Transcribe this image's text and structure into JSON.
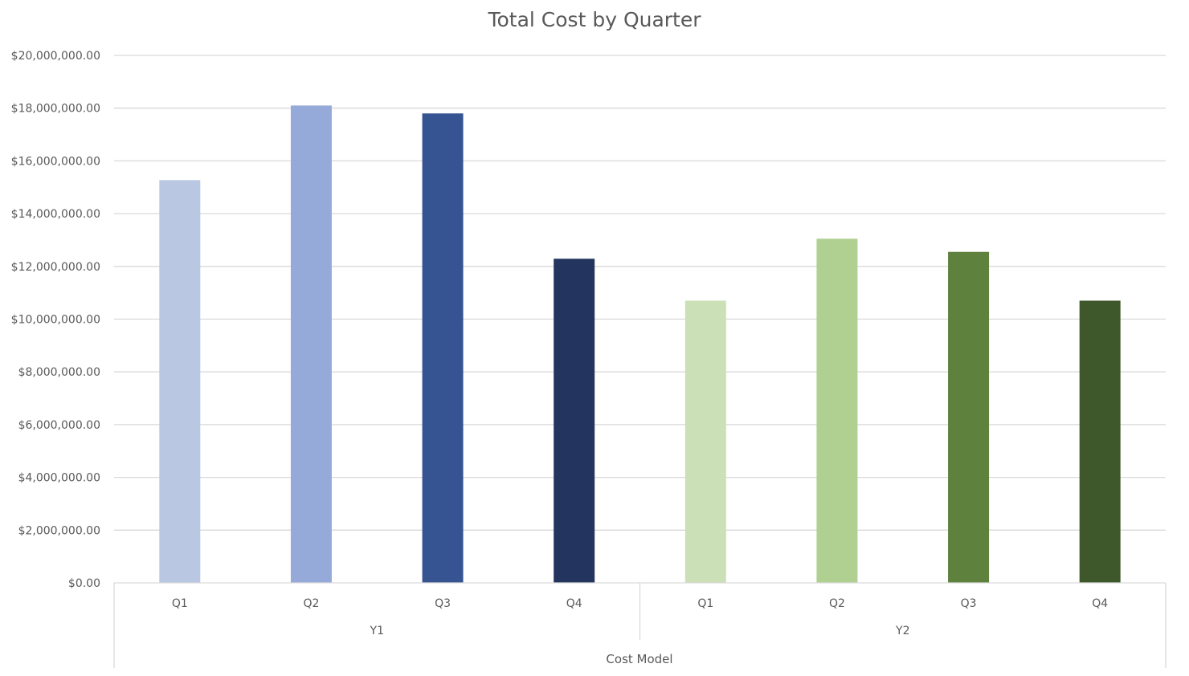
{
  "chart_data": {
    "type": "bar",
    "title": "Total Cost by Quarter",
    "xlabel": "Cost Model",
    "ylabel": "",
    "ylim": [
      0,
      20000000
    ],
    "ytick_step": 2000000,
    "grid": true,
    "yticks": [
      "$0.00",
      "$2,000,000.00",
      "$4,000,000.00",
      "$6,000,000.00",
      "$8,000,000.00",
      "$10,000,000.00",
      "$12,000,000.00",
      "$14,000,000.00",
      "$16,000,000.00",
      "$18,000,000.00",
      "$20,000,000.00"
    ],
    "groups": [
      {
        "label": "Y1",
        "categories": [
          "Q1",
          "Q2",
          "Q3",
          "Q4"
        ]
      },
      {
        "label": "Y2",
        "categories": [
          "Q1",
          "Q2",
          "Q3",
          "Q4"
        ]
      }
    ],
    "bars": [
      {
        "group": "Y1",
        "category": "Q1",
        "value": 15270000,
        "color": "#b9c7e3"
      },
      {
        "group": "Y1",
        "category": "Q2",
        "value": 18100000,
        "color": "#95aad8"
      },
      {
        "group": "Y1",
        "category": "Q3",
        "value": 17800000,
        "color": "#375492"
      },
      {
        "group": "Y1",
        "category": "Q4",
        "value": 12290000,
        "color": "#23355e"
      },
      {
        "group": "Y2",
        "category": "Q1",
        "value": 10700000,
        "color": "#cce0b8"
      },
      {
        "group": "Y2",
        "category": "Q2",
        "value": 13050000,
        "color": "#b0d092"
      },
      {
        "group": "Y2",
        "category": "Q3",
        "value": 12550000,
        "color": "#5e813e"
      },
      {
        "group": "Y2",
        "category": "Q4",
        "value": 10700000,
        "color": "#3e582b"
      }
    ]
  }
}
